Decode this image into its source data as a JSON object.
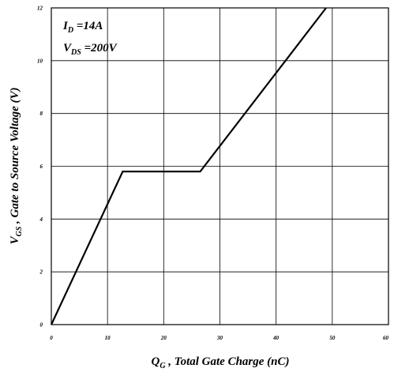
{
  "chart_data": {
    "type": "line",
    "xlabel": {
      "main": "Q",
      "sub": "G",
      "rest": " , Total Gate Charge (nC)"
    },
    "ylabel": {
      "main": "V",
      "sub": "GS",
      "rest": " , Gate to Source Voltage (V)"
    },
    "annotations": [
      {
        "main": "I",
        "sub": "D",
        "rest": " =14A"
      },
      {
        "main": "V",
        "sub": "DS",
        "rest": " =200V"
      }
    ],
    "xlim": [
      0,
      60
    ],
    "ylim": [
      0,
      12
    ],
    "xticks": [
      0,
      10,
      20,
      30,
      40,
      50,
      60
    ],
    "yticks": [
      0,
      2,
      4,
      6,
      8,
      10,
      12
    ],
    "grid": true,
    "series": [
      {
        "x": [
          0,
          12.7,
          26.5,
          48.9
        ],
        "y": [
          0,
          5.8,
          5.8,
          12
        ]
      }
    ]
  }
}
